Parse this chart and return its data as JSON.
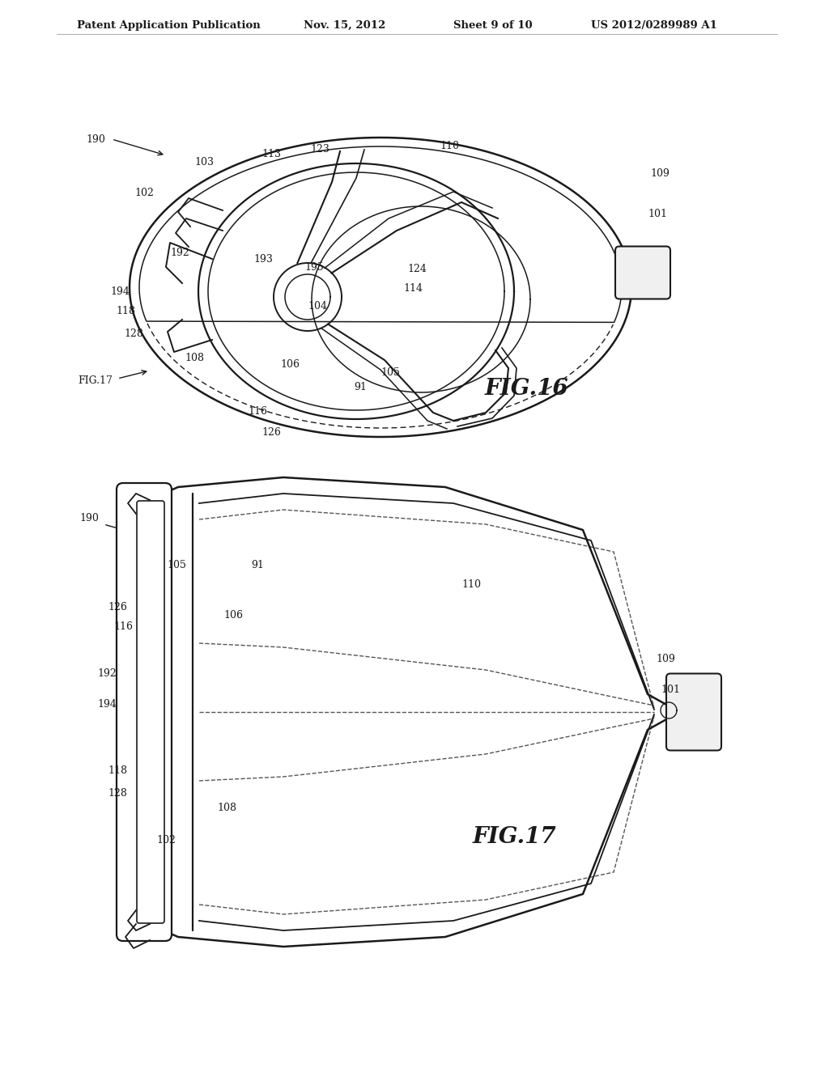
{
  "background_color": "#ffffff",
  "header_text": "Patent Application Publication",
  "header_date": "Nov. 15, 2012",
  "header_sheet": "Sheet 9 of 10",
  "header_patent": "US 2012/0289989 A1",
  "fig16_label": "FIG.16",
  "fig17_label": "FIG.17",
  "line_color": "#1a1a1a",
  "dashed_color": "#555555",
  "label_fontsize": 9,
  "fig_label_fontsize": 20
}
